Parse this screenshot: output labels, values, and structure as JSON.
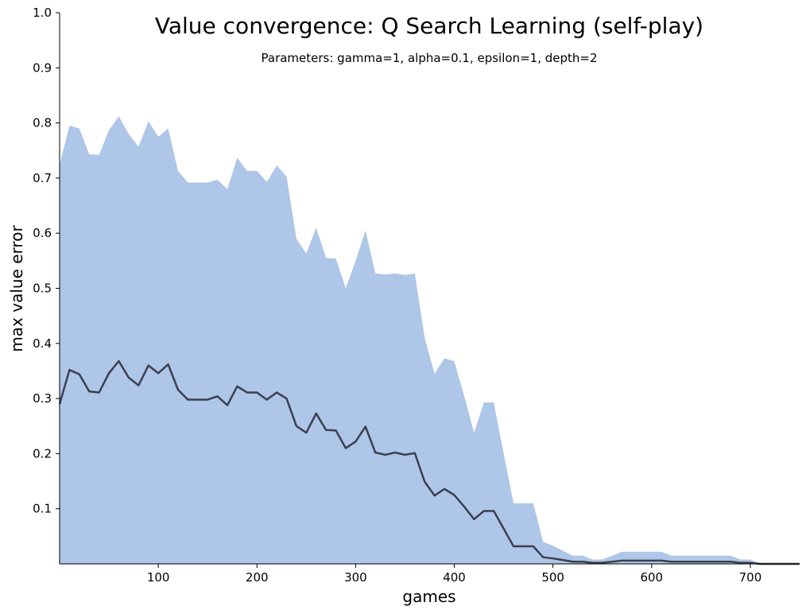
{
  "chart_data": {
    "type": "area",
    "title": "Value convergence: Q Search Learning (self-play)",
    "subtitle": "Parameters: gamma=1, alpha=0.1, epsilon=1, depth=2",
    "xlabel": "games",
    "ylabel": "max value error",
    "xlim": [
      0,
      750
    ],
    "ylim": [
      0,
      1.0
    ],
    "xticks": [
      100,
      200,
      300,
      400,
      500,
      600,
      700
    ],
    "yticks": [
      0.1,
      0.2,
      0.3,
      0.4,
      0.5,
      0.6,
      0.7,
      0.8,
      0.9,
      1.0
    ],
    "grid": false,
    "colors": {
      "area": "#aec6e8",
      "line": "#3b3f4f"
    },
    "x": [
      0,
      10,
      20,
      30,
      40,
      50,
      60,
      70,
      80,
      90,
      100,
      110,
      120,
      130,
      140,
      150,
      160,
      170,
      180,
      190,
      200,
      210,
      220,
      230,
      240,
      250,
      260,
      270,
      280,
      290,
      300,
      310,
      320,
      330,
      340,
      350,
      360,
      370,
      380,
      390,
      400,
      410,
      420,
      430,
      440,
      450,
      460,
      470,
      480,
      490,
      500,
      510,
      520,
      530,
      540,
      550,
      560,
      570,
      580,
      590,
      600,
      610,
      620,
      630,
      640,
      650,
      660,
      670,
      680,
      690,
      700,
      710,
      720,
      730,
      740,
      750
    ],
    "series": [
      {
        "values": [
          0.725,
          0.795,
          0.79,
          0.743,
          0.742,
          0.787,
          0.812,
          0.78,
          0.757,
          0.803,
          0.775,
          0.79,
          0.713,
          0.692,
          0.692,
          0.692,
          0.697,
          0.68,
          0.737,
          0.713,
          0.713,
          0.693,
          0.723,
          0.703,
          0.59,
          0.563,
          0.61,
          0.555,
          0.554,
          0.5,
          0.55,
          0.605,
          0.527,
          0.525,
          0.527,
          0.524,
          0.527,
          0.41,
          0.345,
          0.373,
          0.368,
          0.305,
          0.238,
          0.293,
          0.293,
          0.2,
          0.11,
          0.11,
          0.11,
          0.04,
          0.033,
          0.024,
          0.015,
          0.015,
          0.008,
          0.008,
          0.015,
          0.022,
          0.022,
          0.022,
          0.022,
          0.022,
          0.015,
          0.015,
          0.015,
          0.015,
          0.015,
          0.015,
          0.015,
          0.008,
          0.008,
          0.0,
          0.0,
          0.0,
          0.0,
          0.0
        ]
      },
      {
        "values": [
          0.29,
          0.352,
          0.344,
          0.313,
          0.311,
          0.346,
          0.368,
          0.338,
          0.324,
          0.36,
          0.346,
          0.362,
          0.316,
          0.298,
          0.298,
          0.298,
          0.304,
          0.288,
          0.322,
          0.311,
          0.311,
          0.298,
          0.311,
          0.3,
          0.25,
          0.238,
          0.273,
          0.243,
          0.242,
          0.21,
          0.222,
          0.249,
          0.202,
          0.198,
          0.202,
          0.198,
          0.201,
          0.149,
          0.124,
          0.136,
          0.125,
          0.104,
          0.081,
          0.096,
          0.096,
          0.064,
          0.032,
          0.032,
          0.032,
          0.012,
          0.01,
          0.007,
          0.004,
          0.004,
          0.002,
          0.002,
          0.004,
          0.006,
          0.006,
          0.006,
          0.006,
          0.006,
          0.004,
          0.004,
          0.004,
          0.004,
          0.004,
          0.004,
          0.004,
          0.002,
          0.002,
          0.0,
          0.0,
          0.0,
          0.0,
          0.0
        ]
      }
    ]
  }
}
